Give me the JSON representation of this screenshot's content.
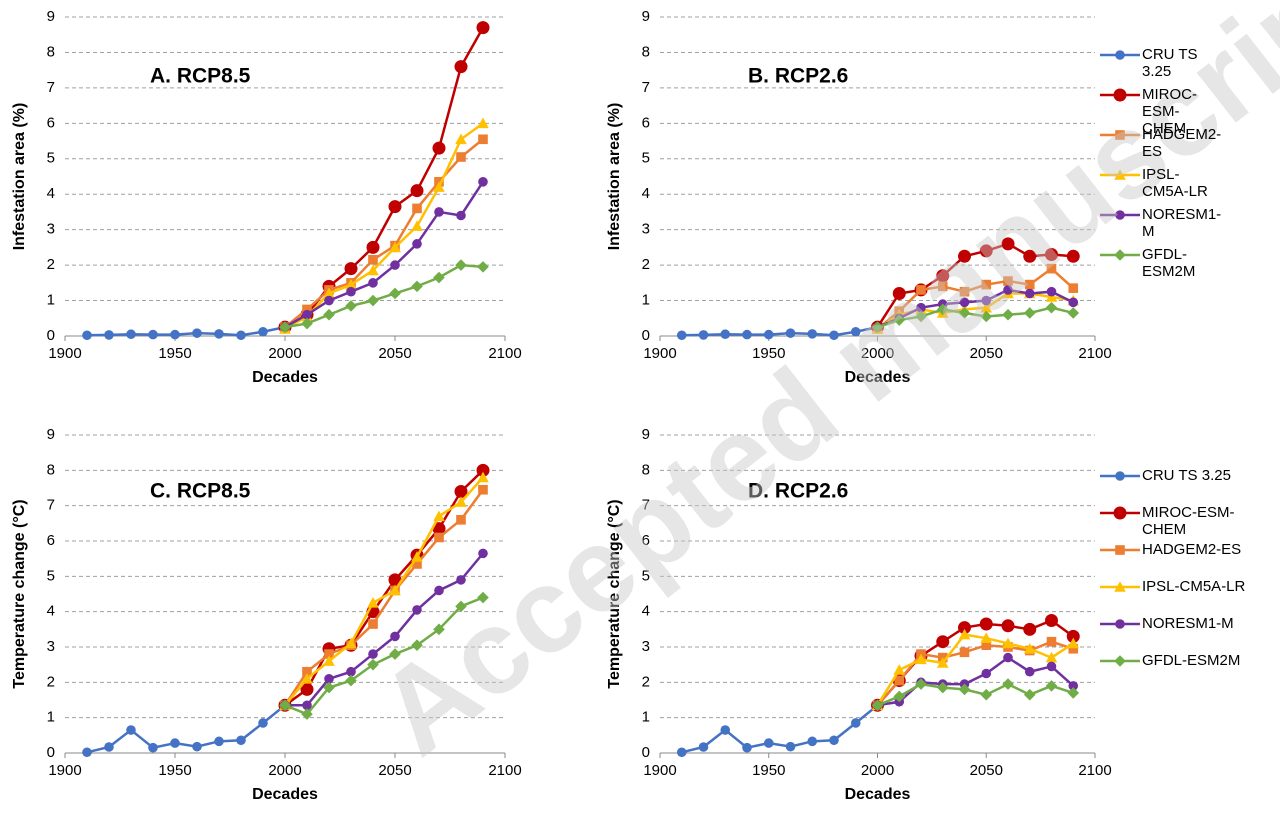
{
  "watermark": "Accepted manuscript",
  "chart_data": [
    {
      "type": "line",
      "title": "A.  RCP8.5",
      "xlabel": "Decades",
      "ylabel": "Infestation area (%)",
      "xlim": [
        1900,
        2100
      ],
      "xticks": [
        1900,
        1950,
        2000,
        2050,
        2100
      ],
      "ylim": [
        0,
        9
      ],
      "yticks": [
        0,
        1,
        2,
        3,
        4,
        5,
        6,
        7,
        8,
        9
      ],
      "grid": true,
      "series": [
        {
          "name": "CRU TS 3.25",
          "color": "#4472c4",
          "marker": "circle",
          "x": [
            1910,
            1920,
            1930,
            1940,
            1950,
            1960,
            1970,
            1980,
            1990,
            2000
          ],
          "values": [
            0.02,
            0.03,
            0.05,
            0.04,
            0.04,
            0.08,
            0.06,
            0.02,
            0.12,
            0.25
          ]
        },
        {
          "name": "MIROC-ESM-CHEM",
          "color": "#c00000",
          "marker": "circle",
          "x": [
            2000,
            2010,
            2020,
            2030,
            2040,
            2050,
            2060,
            2070,
            2080,
            2090
          ],
          "values": [
            0.25,
            0.6,
            1.4,
            1.9,
            2.5,
            3.65,
            4.1,
            5.3,
            7.6,
            8.7
          ]
        },
        {
          "name": "HADGEM2-ES",
          "color": "#ed7d31",
          "marker": "square",
          "x": [
            2000,
            2010,
            2020,
            2030,
            2040,
            2050,
            2060,
            2070,
            2080,
            2090
          ],
          "values": [
            0.25,
            0.75,
            1.3,
            1.5,
            2.15,
            2.55,
            3.6,
            4.35,
            5.05,
            5.55
          ]
        },
        {
          "name": "IPSL-CM5A-LR",
          "color": "#ffc000",
          "marker": "triangle",
          "x": [
            2000,
            2010,
            2020,
            2030,
            2040,
            2050,
            2060,
            2070,
            2080,
            2090
          ],
          "values": [
            0.2,
            0.55,
            1.2,
            1.45,
            1.85,
            2.5,
            3.1,
            4.2,
            5.55,
            6.0
          ]
        },
        {
          "name": "NORESM1-M",
          "color": "#7030a0",
          "marker": "circle",
          "x": [
            2000,
            2010,
            2020,
            2030,
            2040,
            2050,
            2060,
            2070,
            2080,
            2090
          ],
          "values": [
            0.25,
            0.6,
            1.0,
            1.25,
            1.5,
            2.0,
            2.6,
            3.5,
            3.4,
            4.35
          ]
        },
        {
          "name": "GFDL-ESM2M",
          "color": "#70ad47",
          "marker": "diamond",
          "x": [
            2000,
            2010,
            2020,
            2030,
            2040,
            2050,
            2060,
            2070,
            2080,
            2090
          ],
          "values": [
            0.25,
            0.35,
            0.6,
            0.85,
            1.0,
            1.2,
            1.4,
            1.65,
            2.0,
            1.95
          ]
        }
      ]
    },
    {
      "type": "line",
      "title": "B.  RCP2.6",
      "xlabel": "Decades",
      "ylabel": "Infestation area (%)",
      "xlim": [
        1900,
        2100
      ],
      "xticks": [
        1900,
        1950,
        2000,
        2050,
        2100
      ],
      "ylim": [
        0,
        9
      ],
      "yticks": [
        0,
        1,
        2,
        3,
        4,
        5,
        6,
        7,
        8,
        9
      ],
      "grid": true,
      "legend": "right",
      "series": [
        {
          "name": "CRU TS 3.25",
          "color": "#4472c4",
          "marker": "circle",
          "x": [
            1910,
            1920,
            1930,
            1940,
            1950,
            1960,
            1970,
            1980,
            1990,
            2000
          ],
          "values": [
            0.02,
            0.03,
            0.05,
            0.04,
            0.04,
            0.08,
            0.06,
            0.02,
            0.12,
            0.25
          ]
        },
        {
          "name": "MIROC-ESM-CHEM",
          "color": "#c00000",
          "marker": "circle",
          "x": [
            2000,
            2010,
            2020,
            2030,
            2040,
            2050,
            2060,
            2070,
            2080,
            2090
          ],
          "values": [
            0.25,
            1.2,
            1.3,
            1.7,
            2.25,
            2.4,
            2.6,
            2.25,
            2.3,
            2.25
          ]
        },
        {
          "name": "HADGEM2-ES",
          "color": "#ed7d31",
          "marker": "square",
          "x": [
            2000,
            2010,
            2020,
            2030,
            2040,
            2050,
            2060,
            2070,
            2080,
            2090
          ],
          "values": [
            0.2,
            0.7,
            1.3,
            1.4,
            1.25,
            1.45,
            1.55,
            1.45,
            1.9,
            1.35
          ]
        },
        {
          "name": "IPSL-CM5A-LR",
          "color": "#ffc000",
          "marker": "triangle",
          "x": [
            2000,
            2010,
            2020,
            2030,
            2040,
            2050,
            2060,
            2070,
            2080,
            2090
          ],
          "values": [
            0.2,
            0.6,
            0.75,
            0.65,
            0.75,
            0.8,
            1.2,
            1.2,
            1.1,
            1.0
          ]
        },
        {
          "name": "NORESM1-M",
          "color": "#7030a0",
          "marker": "circle",
          "x": [
            2000,
            2010,
            2020,
            2030,
            2040,
            2050,
            2060,
            2070,
            2080,
            2090
          ],
          "values": [
            0.25,
            0.5,
            0.8,
            0.9,
            0.95,
            1.0,
            1.3,
            1.2,
            1.25,
            0.95
          ]
        },
        {
          "name": "GFDL-ESM2M",
          "color": "#70ad47",
          "marker": "diamond",
          "x": [
            2000,
            2010,
            2020,
            2030,
            2040,
            2050,
            2060,
            2070,
            2080,
            2090
          ],
          "values": [
            0.25,
            0.45,
            0.55,
            0.75,
            0.65,
            0.55,
            0.6,
            0.65,
            0.8,
            0.65
          ]
        }
      ]
    },
    {
      "type": "line",
      "title": "C.  RCP8.5",
      "xlabel": "Decades",
      "ylabel": "Temperature change (°C)",
      "xlim": [
        1900,
        2100
      ],
      "xticks": [
        1900,
        1950,
        2000,
        2050,
        2100
      ],
      "ylim": [
        0,
        9
      ],
      "yticks": [
        0,
        1,
        2,
        3,
        4,
        5,
        6,
        7,
        8,
        9
      ],
      "grid": true,
      "series": [
        {
          "name": "CRU TS 3.25",
          "color": "#4472c4",
          "marker": "circle",
          "x": [
            1910,
            1920,
            1930,
            1940,
            1950,
            1960,
            1970,
            1980,
            1990,
            2000
          ],
          "values": [
            0.02,
            0.17,
            0.65,
            0.15,
            0.28,
            0.18,
            0.33,
            0.36,
            0.85,
            1.35
          ]
        },
        {
          "name": "MIROC-ESM-CHEM",
          "color": "#c00000",
          "marker": "circle",
          "x": [
            2000,
            2010,
            2020,
            2030,
            2040,
            2050,
            2060,
            2070,
            2080,
            2090
          ],
          "values": [
            1.35,
            1.8,
            2.95,
            3.05,
            4.0,
            4.9,
            5.6,
            6.35,
            7.4,
            8.0
          ]
        },
        {
          "name": "HADGEM2-ES",
          "color": "#ed7d31",
          "marker": "square",
          "x": [
            2000,
            2010,
            2020,
            2030,
            2040,
            2050,
            2060,
            2070,
            2080,
            2090
          ],
          "values": [
            1.35,
            2.3,
            2.8,
            3.05,
            3.65,
            4.6,
            5.35,
            6.1,
            6.6,
            7.45
          ]
        },
        {
          "name": "IPSL-CM5A-LR",
          "color": "#ffc000",
          "marker": "triangle",
          "x": [
            2000,
            2010,
            2020,
            2030,
            2040,
            2050,
            2060,
            2070,
            2080,
            2090
          ],
          "values": [
            1.35,
            2.1,
            2.6,
            3.1,
            4.25,
            4.6,
            5.55,
            6.7,
            7.1,
            7.8
          ]
        },
        {
          "name": "NORESM1-M",
          "color": "#7030a0",
          "marker": "circle",
          "x": [
            2000,
            2010,
            2020,
            2030,
            2040,
            2050,
            2060,
            2070,
            2080,
            2090
          ],
          "values": [
            1.35,
            1.35,
            2.1,
            2.3,
            2.8,
            3.3,
            4.05,
            4.6,
            4.9,
            5.65
          ]
        },
        {
          "name": "GFDL-ESM2M",
          "color": "#70ad47",
          "marker": "diamond",
          "x": [
            2000,
            2010,
            2020,
            2030,
            2040,
            2050,
            2060,
            2070,
            2080,
            2090
          ],
          "values": [
            1.35,
            1.1,
            1.85,
            2.05,
            2.5,
            2.8,
            3.05,
            3.5,
            4.15,
            4.4
          ]
        }
      ]
    },
    {
      "type": "line",
      "title": "D.  RCP2.6",
      "xlabel": "Decades",
      "ylabel": "Temperature change (°C)",
      "xlim": [
        1900,
        2100
      ],
      "xticks": [
        1900,
        1950,
        2000,
        2050,
        2100
      ],
      "ylim": [
        0,
        9
      ],
      "yticks": [
        0,
        1,
        2,
        3,
        4,
        5,
        6,
        7,
        8,
        9
      ],
      "grid": true,
      "legend": "right",
      "series": [
        {
          "name": "CRU TS 3.25",
          "color": "#4472c4",
          "marker": "circle",
          "x": [
            1910,
            1920,
            1930,
            1940,
            1950,
            1960,
            1970,
            1980,
            1990,
            2000
          ],
          "values": [
            0.02,
            0.17,
            0.65,
            0.15,
            0.28,
            0.18,
            0.33,
            0.36,
            0.85,
            1.35
          ]
        },
        {
          "name": "MIROC-ESM-CHEM",
          "color": "#c00000",
          "marker": "circle",
          "x": [
            2000,
            2010,
            2020,
            2030,
            2040,
            2050,
            2060,
            2070,
            2080,
            2090
          ],
          "values": [
            1.35,
            2.05,
            2.75,
            3.15,
            3.55,
            3.65,
            3.6,
            3.5,
            3.75,
            3.3
          ]
        },
        {
          "name": "HADGEM2-ES",
          "color": "#ed7d31",
          "marker": "square",
          "x": [
            2000,
            2010,
            2020,
            2030,
            2040,
            2050,
            2060,
            2070,
            2080,
            2090
          ],
          "values": [
            1.35,
            2.05,
            2.8,
            2.7,
            2.85,
            3.05,
            3.0,
            2.9,
            3.15,
            2.95
          ]
        },
        {
          "name": "IPSL-CM5A-LR",
          "color": "#ffc000",
          "marker": "triangle",
          "x": [
            2000,
            2010,
            2020,
            2030,
            2040,
            2050,
            2060,
            2070,
            2080,
            2090
          ],
          "values": [
            1.35,
            2.35,
            2.65,
            2.55,
            3.35,
            3.25,
            3.1,
            2.95,
            2.7,
            3.1
          ]
        },
        {
          "name": "NORESM1-M",
          "color": "#7030a0",
          "marker": "circle",
          "x": [
            2000,
            2010,
            2020,
            2030,
            2040,
            2050,
            2060,
            2070,
            2080,
            2090
          ],
          "values": [
            1.35,
            1.45,
            2.0,
            1.95,
            1.95,
            2.25,
            2.7,
            2.3,
            2.45,
            1.9
          ]
        },
        {
          "name": "GFDL-ESM2M",
          "color": "#70ad47",
          "marker": "diamond",
          "x": [
            2000,
            2010,
            2020,
            2030,
            2040,
            2050,
            2060,
            2070,
            2080,
            2090
          ],
          "values": [
            1.35,
            1.6,
            1.95,
            1.85,
            1.8,
            1.65,
            1.95,
            1.65,
            1.9,
            1.7
          ]
        }
      ]
    }
  ]
}
